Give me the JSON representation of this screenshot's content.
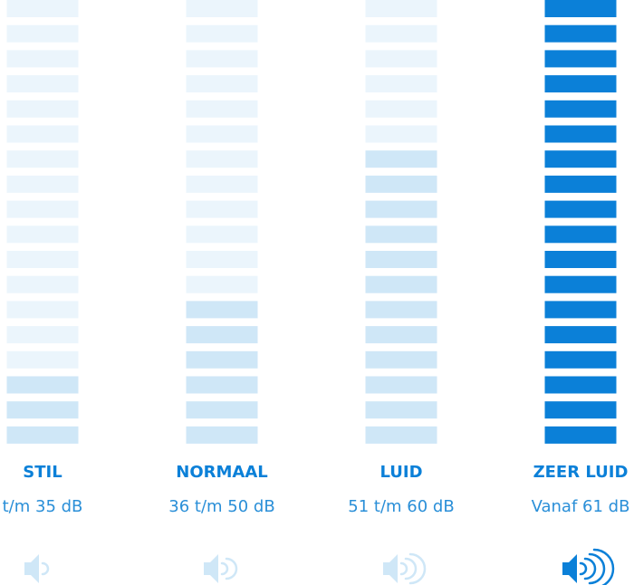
{
  "segments": 18,
  "unlit_color": "#ebf5fc",
  "columns": [
    {
      "label": "STIL",
      "range": "t/m 35 dB",
      "level": 3,
      "color": "#cfe7f7"
    },
    {
      "label": "NORMAAL",
      "range": "36 t/m 50 dB",
      "level": 6,
      "color": "#cfe7f7"
    },
    {
      "label": "LUID",
      "range": "51 t/m 60 dB",
      "level": 12,
      "color": "#cfe7f7"
    },
    {
      "label": "ZEER LUID",
      "range": "Vanaf 61 dB",
      "level": 18,
      "color": "#0b80d8"
    }
  ]
}
